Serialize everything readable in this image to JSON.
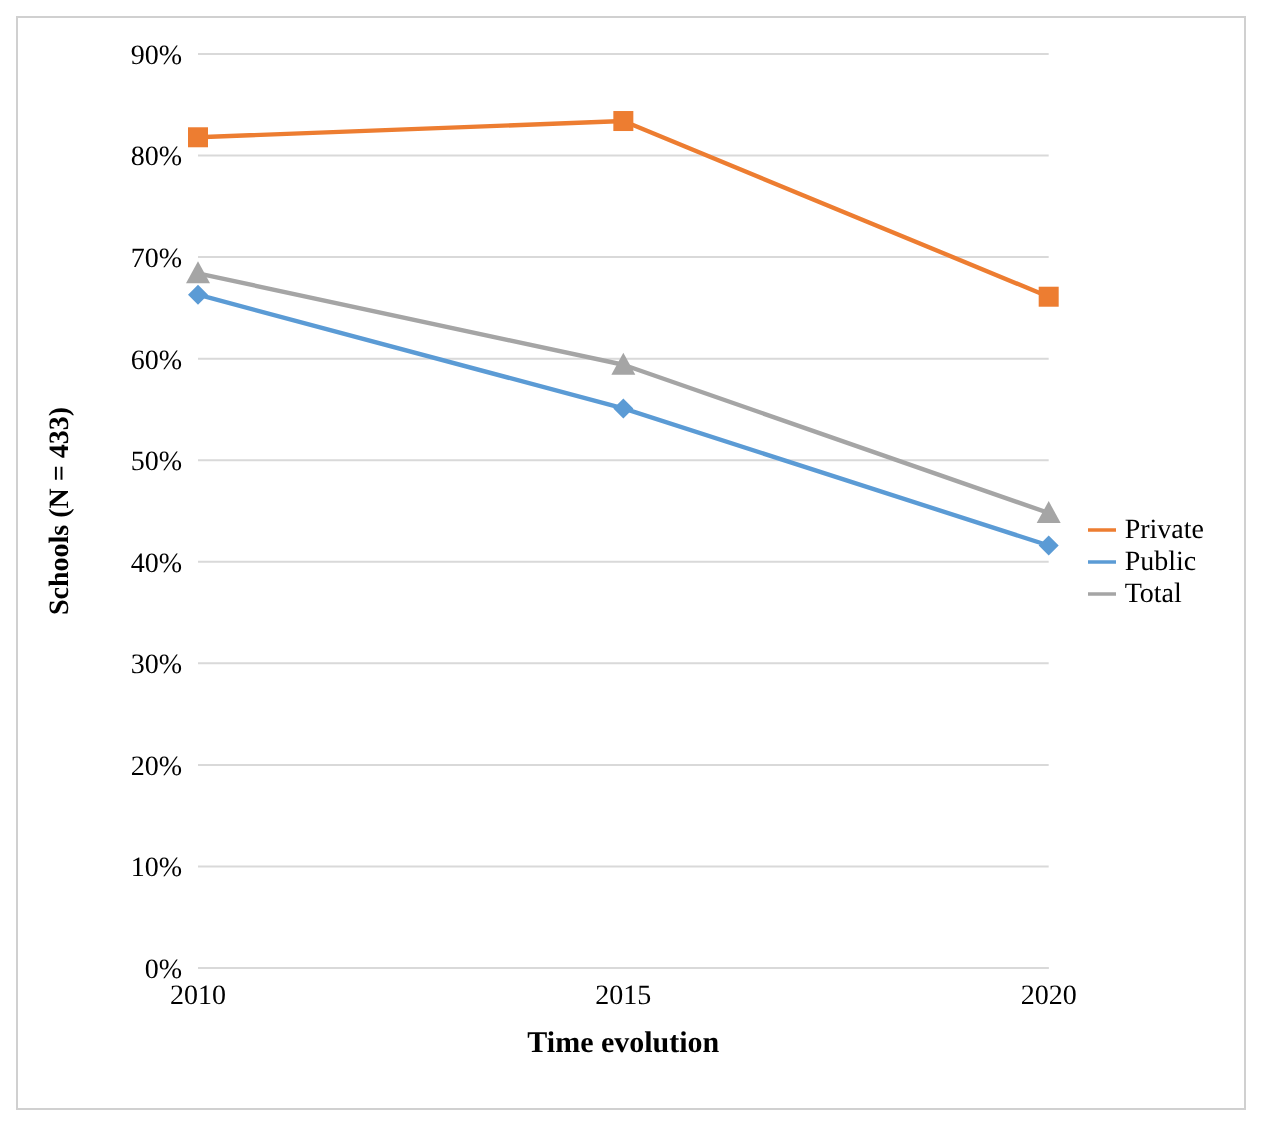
{
  "chart_data": {
    "type": "line",
    "xlabel": "Time evolution",
    "ylabel": "Schools (N = 433)",
    "categories": [
      "2010",
      "2015",
      "2020"
    ],
    "series": [
      {
        "name": "Public",
        "color": "#5b9bd5",
        "marker": "diamond",
        "values": [
          66.3,
          55.1,
          41.6
        ]
      },
      {
        "name": "Private",
        "color": "#ed7d31",
        "marker": "square",
        "values": [
          81.8,
          83.4,
          66.1
        ]
      },
      {
        "name": "Total",
        "color": "#a5a5a5",
        "marker": "triangle",
        "values": [
          68.4,
          59.4,
          44.8
        ]
      }
    ],
    "ylim": [
      0,
      90
    ],
    "yticks": [
      {
        "value": 0,
        "label": "0%"
      },
      {
        "value": 10,
        "label": "10%"
      },
      {
        "value": 20,
        "label": "20%"
      },
      {
        "value": 30,
        "label": "30%"
      },
      {
        "value": 40,
        "label": "40%"
      },
      {
        "value": 50,
        "label": "50%"
      },
      {
        "value": 60,
        "label": "60%"
      },
      {
        "value": 70,
        "label": "70%"
      },
      {
        "value": 80,
        "label": "80%"
      },
      {
        "value": 90,
        "label": "90%"
      }
    ],
    "grid": "y",
    "legend": "right"
  }
}
